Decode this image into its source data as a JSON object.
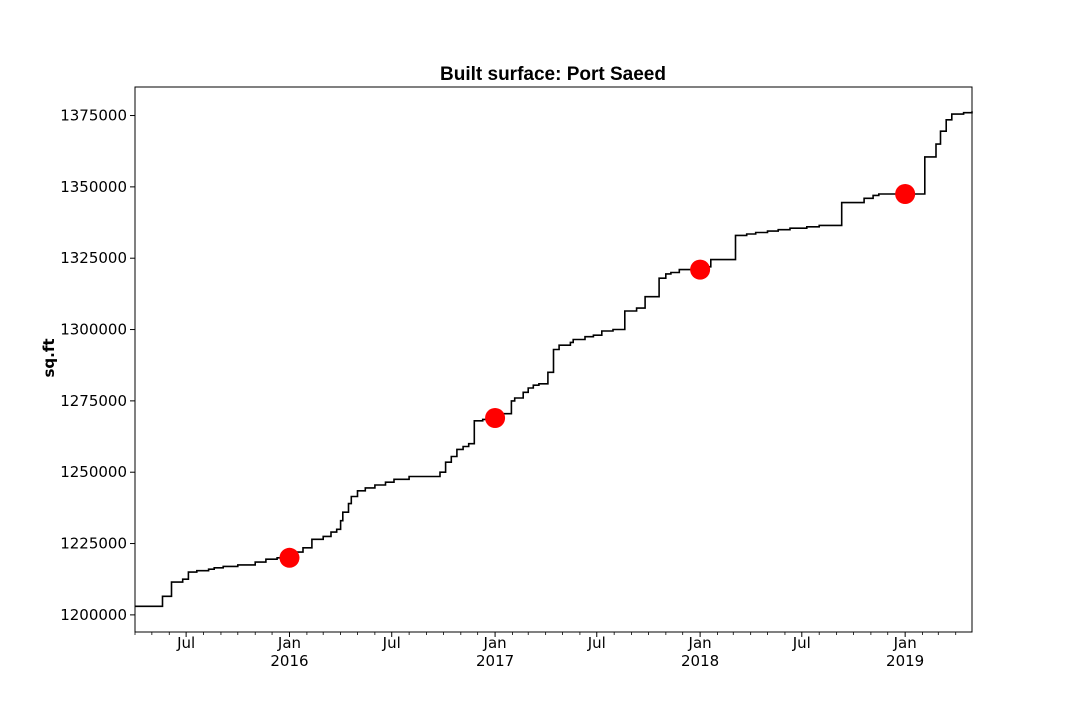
{
  "chart_data": {
    "type": "line",
    "title": "Built surface: Port Saeed",
    "xlabel": "",
    "ylabel": "sq.ft",
    "xlim": [
      "2015-04-01",
      "2019-04-30"
    ],
    "ylim": [
      1194000,
      1385000
    ],
    "grid": false,
    "yticks": [
      1200000,
      1225000,
      1250000,
      1275000,
      1300000,
      1325000,
      1350000,
      1375000
    ],
    "ytick_labels": [
      "1200000",
      "1225000",
      "1250000",
      "1275000",
      "1300000",
      "1325000",
      "1350000",
      "1375000"
    ],
    "xticks": [
      {
        "date": "2015-07-01",
        "label": "Jul",
        "sublabel": ""
      },
      {
        "date": "2016-01-01",
        "label": "Jan",
        "sublabel": "2016"
      },
      {
        "date": "2016-07-01",
        "label": "Jul",
        "sublabel": ""
      },
      {
        "date": "2017-01-01",
        "label": "Jan",
        "sublabel": "2017"
      },
      {
        "date": "2017-07-01",
        "label": "Jul",
        "sublabel": ""
      },
      {
        "date": "2018-01-01",
        "label": "Jan",
        "sublabel": "2018"
      },
      {
        "date": "2018-07-01",
        "label": "Jul",
        "sublabel": ""
      },
      {
        "date": "2019-01-01",
        "label": "Jan",
        "sublabel": "2019"
      }
    ],
    "series": [
      {
        "style": "step",
        "color": "#000000",
        "x": [
          "2015-04-01",
          "2015-05-20",
          "2015-06-05",
          "2015-06-25",
          "2015-07-05",
          "2015-07-20",
          "2015-08-10",
          "2015-08-20",
          "2015-09-05",
          "2015-10-01",
          "2015-11-01",
          "2015-11-20",
          "2015-12-10",
          "2016-01-10",
          "2016-01-25",
          "2016-02-10",
          "2016-03-01",
          "2016-03-15",
          "2016-03-25",
          "2016-04-01",
          "2016-04-05",
          "2016-04-15",
          "2016-04-20",
          "2016-05-01",
          "2016-05-15",
          "2016-06-01",
          "2016-06-20",
          "2016-07-05",
          "2016-08-01",
          "2016-09-25",
          "2016-10-05",
          "2016-10-15",
          "2016-10-25",
          "2016-11-05",
          "2016-11-15",
          "2016-11-25",
          "2016-12-10",
          "2016-12-28",
          "2017-01-15",
          "2017-01-30",
          "2017-02-05",
          "2017-02-20",
          "2017-03-01",
          "2017-03-10",
          "2017-03-20",
          "2017-03-25",
          "2017-04-05",
          "2017-04-15",
          "2017-04-25",
          "2017-05-15",
          "2017-05-20",
          "2017-06-10",
          "2017-06-25",
          "2017-07-10",
          "2017-07-30",
          "2017-08-20",
          "2017-09-10",
          "2017-09-25",
          "2017-10-20",
          "2017-11-01",
          "2017-11-10",
          "2017-11-25",
          "2017-12-10",
          "2018-01-05",
          "2018-01-20",
          "2018-02-10",
          "2018-03-05",
          "2018-03-25",
          "2018-04-10",
          "2018-05-01",
          "2018-05-20",
          "2018-06-10",
          "2018-07-10",
          "2018-08-01",
          "2018-09-10",
          "2018-10-05",
          "2018-10-20",
          "2018-11-05",
          "2018-11-15",
          "2018-12-01",
          "2019-01-20",
          "2019-02-05",
          "2019-02-15",
          "2019-02-25",
          "2019-03-05",
          "2019-03-15",
          "2019-03-25",
          "2019-04-15",
          "2019-04-30"
        ],
        "y": [
          1203000,
          1206500,
          1211500,
          1212500,
          1215000,
          1215500,
          1216000,
          1216500,
          1217000,
          1217500,
          1218500,
          1219500,
          1220000,
          1222000,
          1223500,
          1226500,
          1227500,
          1229000,
          1230000,
          1233000,
          1236000,
          1239000,
          1241500,
          1243500,
          1244500,
          1245500,
          1246500,
          1247500,
          1248500,
          1250000,
          1253500,
          1255500,
          1258000,
          1259000,
          1260000,
          1268000,
          1268500,
          1270500,
          1270500,
          1275000,
          1276000,
          1278000,
          1279500,
          1280500,
          1281000,
          1281000,
          1285000,
          1293000,
          1294500,
          1295500,
          1296500,
          1297500,
          1298000,
          1299500,
          1300000,
          1306500,
          1307500,
          1311500,
          1318000,
          1319500,
          1320000,
          1321000,
          1321000,
          1322000,
          1324500,
          1324500,
          1333000,
          1333500,
          1334000,
          1334500,
          1335000,
          1335500,
          1336000,
          1336500,
          1344500,
          1344500,
          1346000,
          1347000,
          1347500,
          1347500,
          1347500,
          1360500,
          1360500,
          1365000,
          1369500,
          1373500,
          1375500,
          1376000,
          1376500
        ]
      },
      {
        "style": "markers",
        "color": "#ff0000",
        "x": [
          "2016-01-01",
          "2017-01-01",
          "2018-01-01",
          "2019-01-01"
        ],
        "y": [
          1220000,
          1269000,
          1321000,
          1347500
        ]
      }
    ]
  }
}
